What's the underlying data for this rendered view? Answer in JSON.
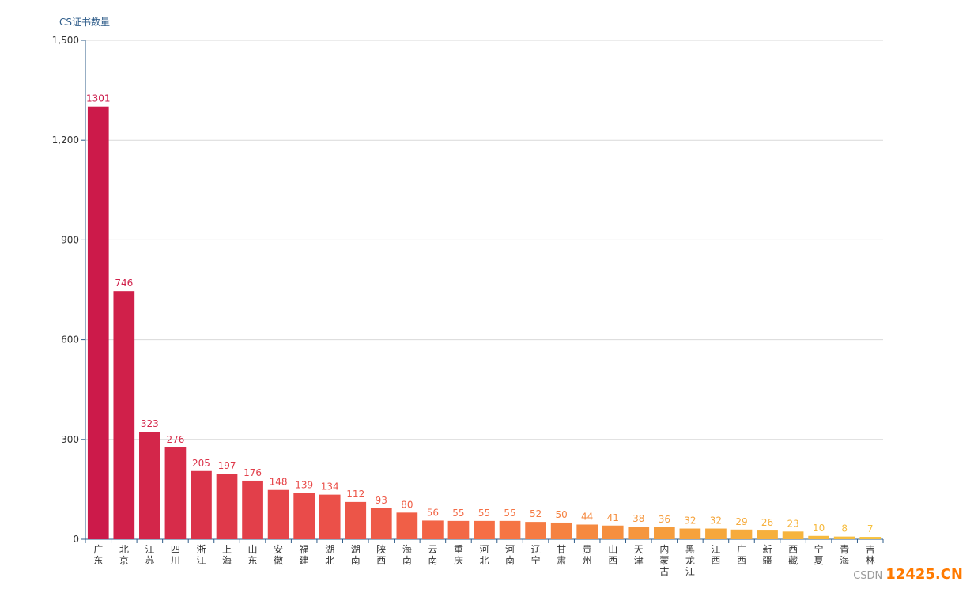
{
  "chart_data": {
    "type": "bar",
    "title": "",
    "ylabel": "CS证书数量",
    "xlabel": "",
    "ylim": [
      0,
      1500
    ],
    "yticks": [
      0,
      300,
      600,
      900,
      1200,
      1500
    ],
    "ytick_labels": [
      "0",
      "300",
      "600",
      "900",
      "1,200",
      "1,500"
    ],
    "grid": true,
    "legend": "none",
    "categories": [
      "广东",
      "北京",
      "江苏",
      "四川",
      "浙江",
      "上海",
      "山东",
      "安徽",
      "福建",
      "湖北",
      "湖南",
      "陕西",
      "海南",
      "云南",
      "重庆",
      "河北",
      "河南",
      "辽宁",
      "甘肃",
      "贵州",
      "山西",
      "天津",
      "内蒙古",
      "黑龙江",
      "江西",
      "广西",
      "新疆",
      "西藏",
      "宁夏",
      "青海",
      "吉林"
    ],
    "values": [
      1301,
      746,
      323,
      276,
      205,
      197,
      176,
      148,
      139,
      134,
      112,
      93,
      80,
      56,
      55,
      55,
      55,
      52,
      50,
      44,
      41,
      38,
      36,
      32,
      32,
      29,
      26,
      23,
      10,
      8,
      7
    ],
    "color_scale": [
      "#cc1a4a",
      "#e8484a",
      "#f56e45",
      "#f5a03c",
      "#f7c23e"
    ]
  },
  "watermark": {
    "csdn": "CSDN",
    "site": "12425.CN"
  }
}
